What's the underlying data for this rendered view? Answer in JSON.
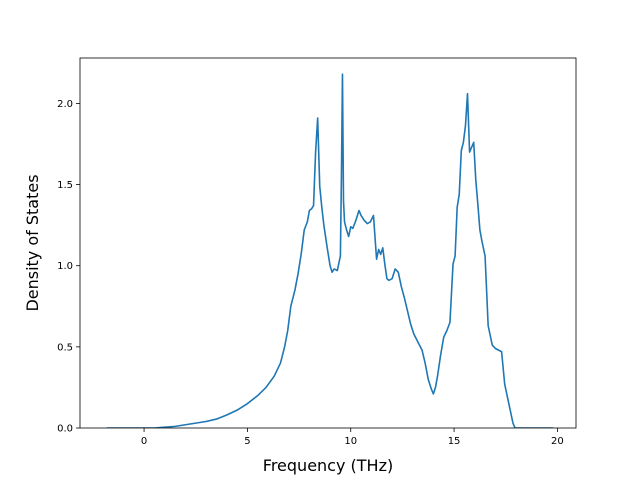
{
  "chart_data": {
    "type": "line",
    "title": "",
    "xlabel": "Frequency (THz)",
    "ylabel": "Density of States",
    "xlim": [
      -3.1,
      20.9
    ],
    "ylim": [
      0.0,
      2.28
    ],
    "xticks": [
      0,
      5,
      10,
      15,
      20
    ],
    "xtick_labels": [
      "0",
      "5",
      "10",
      "15",
      "20"
    ],
    "yticks": [
      0.0,
      0.5,
      1.0,
      1.5,
      2.0
    ],
    "ytick_labels": [
      "0.0",
      "0.5",
      "1.0",
      "1.5",
      "2.0"
    ],
    "grid": false,
    "legend": "none",
    "series": [
      {
        "color": "#1f77b4",
        "x": [
          -1.8,
          -1.0,
          0.0,
          0.5,
          1.0,
          1.5,
          2.0,
          2.5,
          3.0,
          3.5,
          4.0,
          4.5,
          5.0,
          5.5,
          5.9,
          6.3,
          6.6,
          6.8,
          6.95,
          7.1,
          7.3,
          7.45,
          7.6,
          7.75,
          7.9,
          8.0,
          8.1,
          8.2,
          8.3,
          8.4,
          8.5,
          8.6,
          8.7,
          8.85,
          9.0,
          9.1,
          9.2,
          9.35,
          9.5,
          9.55,
          9.6,
          9.65,
          9.7,
          9.8,
          9.9,
          10.0,
          10.1,
          10.25,
          10.4,
          10.5,
          10.65,
          10.8,
          10.95,
          11.1,
          11.25,
          11.35,
          11.45,
          11.55,
          11.65,
          11.75,
          11.85,
          12.0,
          12.15,
          12.3,
          12.45,
          12.6,
          12.75,
          12.9,
          13.05,
          13.25,
          13.45,
          13.6,
          13.75,
          13.9,
          14.0,
          14.1,
          14.2,
          14.35,
          14.5,
          14.65,
          14.8,
          14.95,
          15.05,
          15.15,
          15.25,
          15.35,
          15.45,
          15.55,
          15.65,
          15.75,
          15.85,
          15.95,
          16.05,
          16.15,
          16.25,
          16.35,
          16.5,
          16.65,
          16.75,
          16.85,
          17.0,
          17.15,
          17.3,
          17.45,
          17.6,
          17.7,
          17.85,
          17.95,
          18.1,
          18.5,
          19.0,
          19.8
        ],
        "y": [
          0.0,
          0.0,
          0.0,
          0.0,
          0.005,
          0.01,
          0.02,
          0.03,
          0.04,
          0.055,
          0.08,
          0.11,
          0.15,
          0.2,
          0.25,
          0.32,
          0.4,
          0.5,
          0.6,
          0.75,
          0.85,
          0.95,
          1.07,
          1.22,
          1.27,
          1.34,
          1.35,
          1.37,
          1.7,
          1.91,
          1.49,
          1.36,
          1.25,
          1.12,
          1.0,
          0.96,
          0.98,
          0.97,
          1.06,
          1.55,
          2.18,
          1.4,
          1.27,
          1.22,
          1.18,
          1.24,
          1.23,
          1.28,
          1.34,
          1.31,
          1.28,
          1.26,
          1.27,
          1.31,
          1.04,
          1.1,
          1.07,
          1.11,
          1.01,
          0.92,
          0.91,
          0.92,
          0.98,
          0.96,
          0.87,
          0.8,
          0.72,
          0.64,
          0.58,
          0.53,
          0.48,
          0.4,
          0.3,
          0.24,
          0.21,
          0.25,
          0.32,
          0.45,
          0.56,
          0.6,
          0.65,
          1.01,
          1.06,
          1.36,
          1.44,
          1.71,
          1.76,
          1.86,
          2.06,
          1.7,
          1.73,
          1.76,
          1.53,
          1.38,
          1.22,
          1.15,
          1.06,
          0.63,
          0.57,
          0.51,
          0.49,
          0.48,
          0.47,
          0.27,
          0.18,
          0.12,
          0.03,
          0.0,
          0.0,
          0.0,
          0.0,
          0.0
        ]
      }
    ]
  }
}
